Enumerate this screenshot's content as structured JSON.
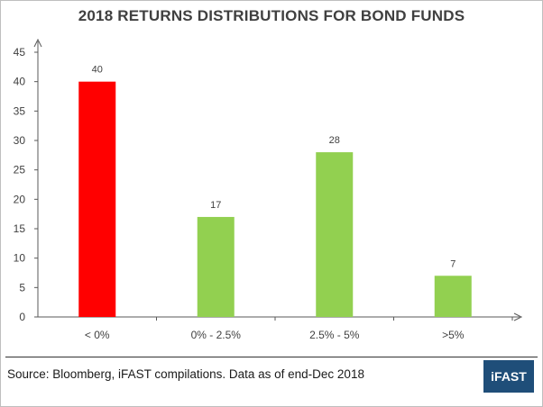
{
  "chart_data": {
    "type": "bar",
    "title": "2018 RETURNS DISTRIBUTIONS FOR BOND FUNDS",
    "categories": [
      "< 0%",
      "0% - 2.5%",
      "2.5% - 5%",
      ">5%"
    ],
    "values": [
      40,
      17,
      28,
      7
    ],
    "bar_colors": [
      "#ff0000",
      "#92d050",
      "#92d050",
      "#92d050"
    ],
    "ylim": [
      0,
      45
    ],
    "yticks": [
      0,
      5,
      10,
      15,
      20,
      25,
      30,
      35,
      40,
      45
    ],
    "xlabel": "",
    "ylabel": "",
    "grid": false
  },
  "footer": {
    "source": "Source: Bloomberg, iFAST compilations. Data as of end-Dec 2018",
    "logo_text": "iFAST",
    "logo_color": "#1f4e79"
  }
}
